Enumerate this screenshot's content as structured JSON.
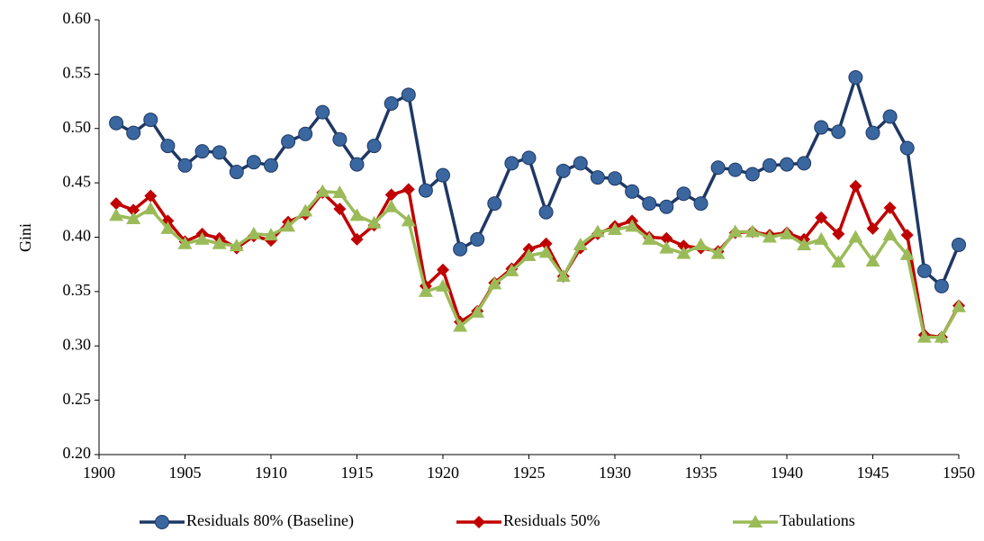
{
  "chart_data": {
    "type": "line",
    "y_label": "Gini",
    "x": [
      1901,
      1902,
      1903,
      1904,
      1905,
      1906,
      1907,
      1908,
      1909,
      1910,
      1911,
      1912,
      1913,
      1914,
      1915,
      1916,
      1917,
      1918,
      1919,
      1920,
      1921,
      1922,
      1923,
      1924,
      1925,
      1926,
      1927,
      1928,
      1929,
      1930,
      1931,
      1932,
      1933,
      1934,
      1935,
      1936,
      1937,
      1938,
      1939,
      1940,
      1941,
      1942,
      1943,
      1944,
      1945,
      1946,
      1947,
      1948,
      1949,
      1950
    ],
    "series": [
      {
        "name": "Residuals 80% (Baseline)",
        "color": "#1f3864",
        "marker_color": "#3a67a0",
        "marker": "circle",
        "values": [
          0.505,
          0.496,
          0.508,
          0.484,
          0.466,
          0.479,
          0.478,
          0.46,
          0.469,
          0.466,
          0.488,
          0.495,
          0.515,
          0.49,
          0.467,
          0.484,
          0.523,
          0.531,
          0.443,
          0.457,
          0.389,
          0.398,
          0.431,
          0.468,
          0.473,
          0.423,
          0.461,
          0.468,
          0.455,
          0.454,
          0.442,
          0.431,
          0.428,
          0.44,
          0.431,
          0.464,
          0.462,
          0.458,
          0.466,
          0.467,
          0.468,
          0.501,
          0.497,
          0.547,
          0.496,
          0.511,
          0.482,
          0.369,
          0.355,
          0.393
        ]
      },
      {
        "name": "Residuals 50%",
        "color": "#c00000",
        "marker_color": "#c00000",
        "marker": "diamond",
        "values": [
          0.431,
          0.425,
          0.438,
          0.415,
          0.396,
          0.403,
          0.399,
          0.39,
          0.401,
          0.397,
          0.414,
          0.421,
          0.441,
          0.426,
          0.398,
          0.411,
          0.439,
          0.444,
          0.355,
          0.37,
          0.322,
          0.332,
          0.358,
          0.371,
          0.389,
          0.394,
          0.364,
          0.39,
          0.403,
          0.41,
          0.415,
          0.4,
          0.399,
          0.392,
          0.39,
          0.387,
          0.404,
          0.405,
          0.402,
          0.404,
          0.398,
          0.418,
          0.403,
          0.447,
          0.408,
          0.427,
          0.402,
          0.31,
          0.308,
          0.337
        ]
      },
      {
        "name": "Tabulations",
        "color": "#9bbb59",
        "marker_color": "#9bbb59",
        "marker": "triangle",
        "values": [
          0.42,
          0.417,
          0.426,
          0.408,
          0.394,
          0.398,
          0.394,
          0.392,
          0.403,
          0.402,
          0.41,
          0.424,
          0.442,
          0.441,
          0.42,
          0.413,
          0.428,
          0.415,
          0.35,
          0.355,
          0.318,
          0.331,
          0.357,
          0.369,
          0.383,
          0.386,
          0.364,
          0.393,
          0.405,
          0.407,
          0.41,
          0.398,
          0.39,
          0.385,
          0.393,
          0.385,
          0.405,
          0.405,
          0.4,
          0.403,
          0.393,
          0.398,
          0.377,
          0.4,
          0.378,
          0.402,
          0.384,
          0.308,
          0.308,
          0.336
        ]
      }
    ],
    "xlim": [
      1900,
      1950
    ],
    "xticks": [
      1900,
      1905,
      1910,
      1915,
      1920,
      1925,
      1930,
      1935,
      1940,
      1945,
      1950
    ],
    "ylim": [
      0.2,
      0.6
    ],
    "yticks": [
      {
        "value": 0.2,
        "label": "0.20"
      },
      {
        "value": 0.25,
        "label": "0.25"
      },
      {
        "value": 0.3,
        "label": "0.30"
      },
      {
        "value": 0.35,
        "label": "0.35"
      },
      {
        "value": 0.4,
        "label": "0.40"
      },
      {
        "value": 0.45,
        "label": "0.45"
      },
      {
        "value": 0.5,
        "label": "0.50"
      },
      {
        "value": 0.55,
        "label": "0.55"
      },
      {
        "value": 0.6,
        "label": "0.60"
      }
    ],
    "grid": false,
    "legend": "bottom"
  }
}
